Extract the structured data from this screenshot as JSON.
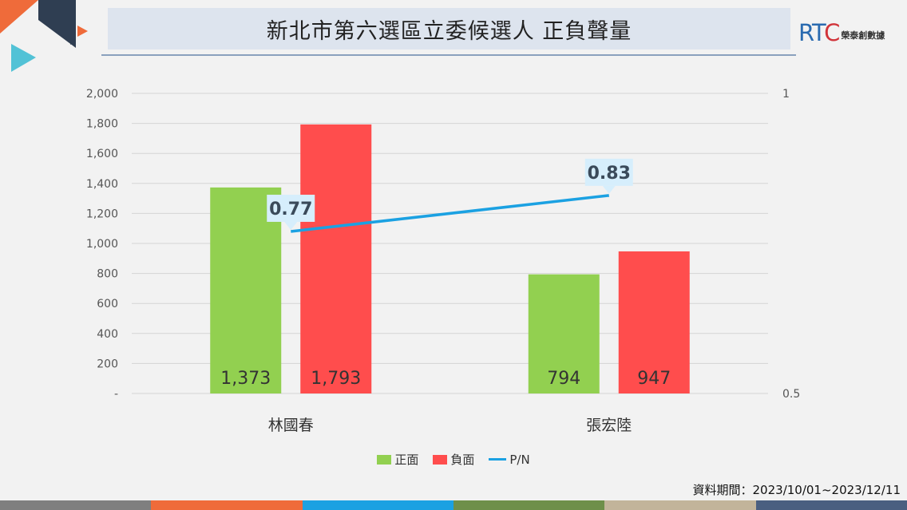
{
  "title": "新北市第六選區立委候選人 正負聲量",
  "brand": {
    "mark_a": "RT",
    "mark_b": "C",
    "name": "榮泰創數據"
  },
  "footnote": "資料期間：2023/10/01~2023/12/11",
  "colors": {
    "positive": "#92d050",
    "negative": "#ff4d4d",
    "pn": "#1ba1e2",
    "pn_label_bg": "#d6eefc"
  },
  "chart_data": {
    "type": "bar",
    "categories": [
      "林國春",
      "張宏陸"
    ],
    "series": [
      {
        "name": "正面",
        "values": [
          1373,
          794
        ],
        "labels": [
          "1,373",
          "794"
        ]
      },
      {
        "name": "負面",
        "values": [
          1793,
          947
        ],
        "labels": [
          "1,793",
          "947"
        ]
      }
    ],
    "line_series": {
      "name": "P/N",
      "values": [
        0.77,
        0.83
      ],
      "labels": [
        "0.77",
        "0.83"
      ],
      "axis": "right"
    },
    "ylim": [
      0,
      2000
    ],
    "y_ticks": [
      0,
      200,
      400,
      600,
      800,
      1000,
      1200,
      1400,
      1600,
      1800,
      2000
    ],
    "y_tick_labels": [
      "-",
      "200",
      "400",
      "600",
      "800",
      "1,000",
      "1,200",
      "1,400",
      "1,600",
      "1,800",
      "2,000"
    ],
    "y2lim": [
      0.5,
      1
    ],
    "y2_tick_labels": [
      "0.5",
      "1"
    ],
    "grid": true,
    "legend_position": "bottom"
  }
}
